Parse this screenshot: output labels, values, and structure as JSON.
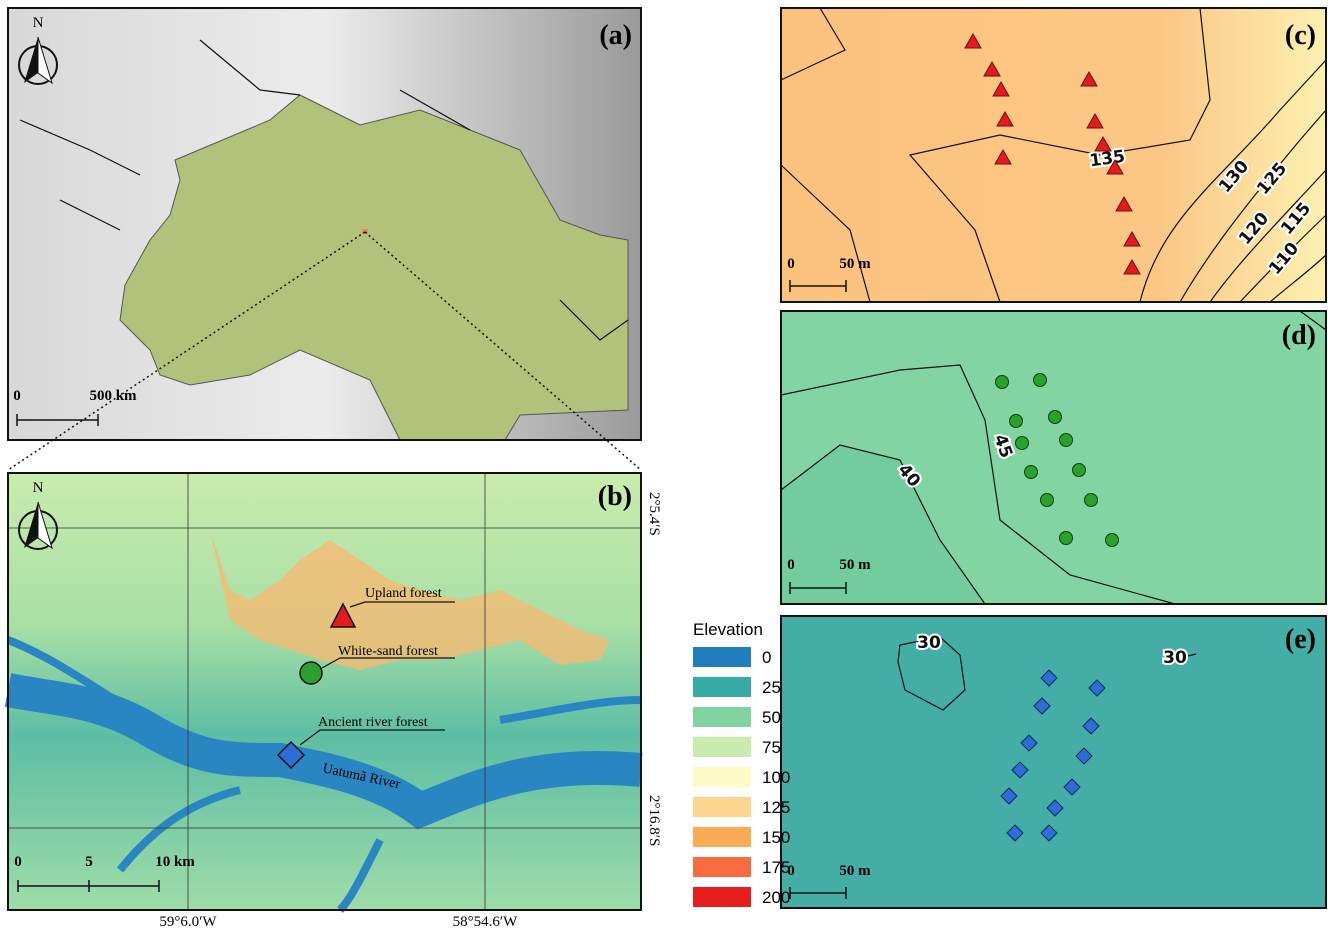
{
  "panel_a": {
    "label": "(a)",
    "north": "N",
    "scale": [
      0,
      "500 km"
    ]
  },
  "panel_b": {
    "label": "(b)",
    "north": "N",
    "scale": [
      0,
      5,
      "10 km"
    ],
    "sites": [
      "Upland forest",
      "White-sand forest",
      "Ancient river forest"
    ],
    "river": "Uatumã River",
    "lat_labels": [
      "2°5.4′S",
      "2°16.8′S"
    ],
    "lon_labels": [
      "59°6.0′W",
      "58°54.6′W"
    ]
  },
  "panel_c": {
    "label": "(c)",
    "scale": [
      0,
      "50 m"
    ],
    "contours": [
      135,
      130,
      125,
      120,
      115,
      110
    ]
  },
  "panel_d": {
    "label": "(d)",
    "scale": [
      0,
      "50 m"
    ],
    "contours": [
      45,
      40
    ]
  },
  "panel_e": {
    "label": "(e)",
    "scale": [
      0,
      "50 m"
    ],
    "contours": [
      30,
      30
    ]
  },
  "legend": {
    "title": "Elevation",
    "items": [
      {
        "label": 0,
        "color": "#1f7fbd"
      },
      {
        "label": 25,
        "color": "#36aaa5"
      },
      {
        "label": 50,
        "color": "#80d3a0"
      },
      {
        "label": 75,
        "color": "#c9ecae"
      },
      {
        "label": 100,
        "color": "#fdfac6"
      },
      {
        "label": 125,
        "color": "#fed48f"
      },
      {
        "label": 150,
        "color": "#fbaa56"
      },
      {
        "label": 175,
        "color": "#f86b3f"
      },
      {
        "label": 200,
        "color": "#e81e1e"
      }
    ]
  }
}
